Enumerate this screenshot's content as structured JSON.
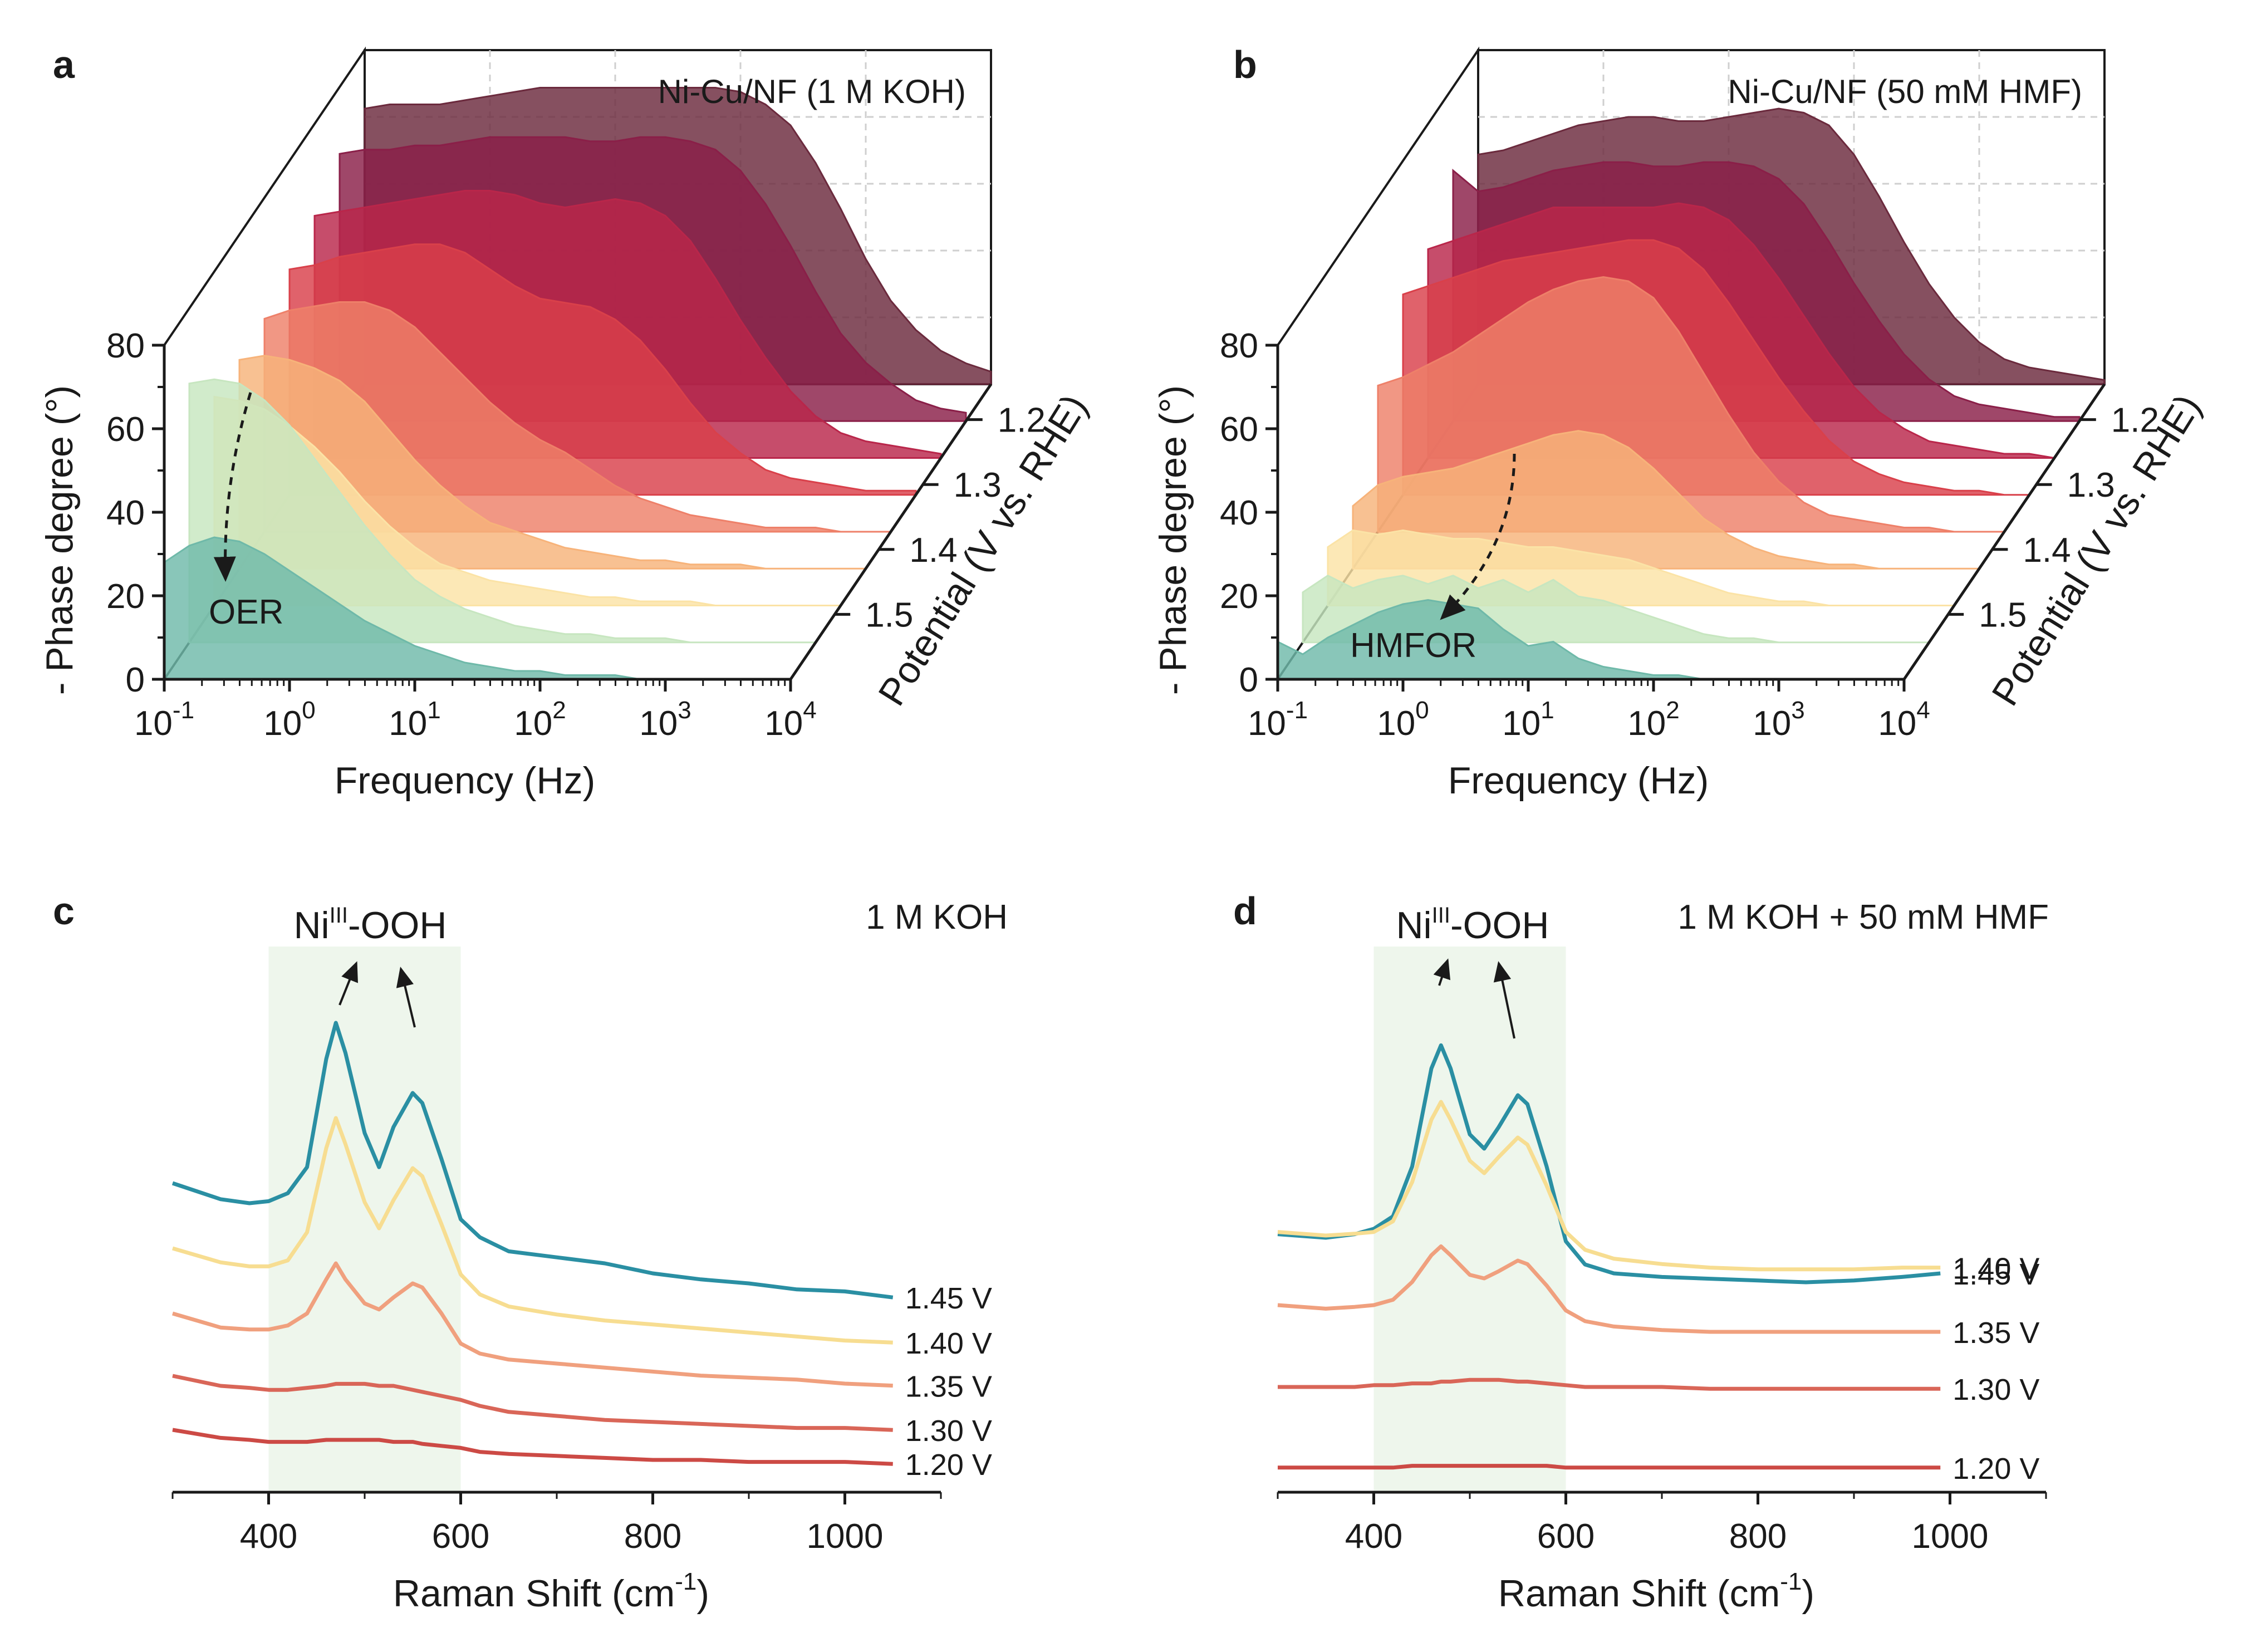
{
  "panels": {
    "a": {
      "label": "a",
      "title": "Ni-Cu/NF  (1 M KOH)",
      "ylabel": "- Phase degree (°)",
      "xlabel": "Frequency (Hz)",
      "zlabel": "Potential (V vs. RHE)",
      "yticks": [
        "0",
        "20",
        "40",
        "60",
        "80"
      ],
      "xticks": [
        {
          "base": "10",
          "exp": "-1"
        },
        {
          "base": "10",
          "exp": "0"
        },
        {
          "base": "10",
          "exp": "1"
        },
        {
          "base": "10",
          "exp": "2"
        },
        {
          "base": "10",
          "exp": "3"
        },
        {
          "base": "10",
          "exp": "4"
        }
      ],
      "zticks": [
        "1.2",
        "1.3",
        "1.4",
        "1.5"
      ],
      "annotation": "OER"
    },
    "b": {
      "label": "b",
      "title": "Ni-Cu/NF  (50 mM HMF)",
      "ylabel": "- Phase degree (°)",
      "xlabel": "Frequency (Hz)",
      "zlabel": "Potential (V vs. RHE)",
      "yticks": [
        "0",
        "20",
        "40",
        "60",
        "80"
      ],
      "xticks": [
        {
          "base": "10",
          "exp": "-1"
        },
        {
          "base": "10",
          "exp": "0"
        },
        {
          "base": "10",
          "exp": "1"
        },
        {
          "base": "10",
          "exp": "2"
        },
        {
          "base": "10",
          "exp": "3"
        },
        {
          "base": "10",
          "exp": "4"
        }
      ],
      "zticks": [
        "1.2",
        "1.3",
        "1.4",
        "1.5"
      ],
      "annotation": "HMFOR"
    },
    "c": {
      "label": "c",
      "title": "1 M KOH",
      "peak_label": {
        "main": "Ni",
        "sup": "III",
        "tail": "-OOH"
      },
      "xlabel": {
        "main": "Raman Shift (cm",
        "sup": "-1",
        "tail": ")"
      },
      "xticks": [
        "400",
        "600",
        "800",
        "1000"
      ],
      "trace_labels": [
        "1.45 V",
        "1.40 V",
        "1.35 V",
        "1.30 V",
        "1.20 V"
      ]
    },
    "d": {
      "label": "d",
      "title": "1 M KOH + 50 mM HMF",
      "peak_label": {
        "main": "Ni",
        "sup": "III",
        "tail": "-OOH"
      },
      "xlabel": {
        "main": "Raman Shift (cm",
        "sup": "-1",
        "tail": ")"
      },
      "xticks": [
        "400",
        "600",
        "800",
        "1000"
      ],
      "trace_labels": [
        "1.45 V",
        "1.40 V",
        "1.35 V",
        "1.30 V",
        "1.20 V"
      ]
    }
  },
  "colors": {
    "bode": [
      "#6b2a3d",
      "#8a1f48",
      "#b9264a",
      "#d9404a",
      "#ee8069",
      "#f7b37a",
      "#fbe3a6",
      "#c7e6c0",
      "#6fb9a9"
    ],
    "raman": [
      "#2a8fa3",
      "#f7dd91",
      "#f0a07e",
      "#d96658",
      "#cc4a45"
    ],
    "highlight": "#eef6ec",
    "grid": "#cfcfcf"
  },
  "chart_data": [
    {
      "panel": "a",
      "type": "area",
      "title": "Ni-Cu/NF  (1 M KOH)",
      "xlabel": "Frequency (Hz)",
      "ylabel": "- Phase degree (°)",
      "zlabel": "Potential (V vs. RHE)",
      "x_scale": "log",
      "xlim": [
        0.1,
        10000
      ],
      "ylim": [
        0,
        80
      ],
      "grid": true,
      "log10_frequency": [
        -1.0,
        -0.8,
        -0.6,
        -0.4,
        -0.2,
        0.0,
        0.2,
        0.4,
        0.6,
        0.8,
        1.0,
        1.2,
        1.4,
        1.6,
        1.8,
        2.0,
        2.2,
        2.4,
        2.6,
        2.8,
        3.0,
        3.2,
        3.4,
        3.6,
        3.8,
        4.0
      ],
      "series": [
        {
          "values": [
            66,
            67,
            67,
            67,
            68,
            69,
            70,
            71,
            71,
            71,
            71,
            71,
            71,
            71,
            71,
            70,
            67,
            62,
            53,
            42,
            30,
            20,
            13,
            8,
            5,
            3
          ]
        },
        {
          "values": [
            64,
            65,
            65,
            66,
            66,
            67,
            68,
            68,
            68,
            68,
            67,
            67,
            68,
            68,
            67,
            65,
            60,
            52,
            42,
            31,
            21,
            14,
            9,
            5,
            3,
            2
          ]
        },
        {
          "values": [
            58,
            59,
            60,
            61,
            62,
            63,
            64,
            64,
            63,
            61,
            60,
            61,
            62,
            61,
            58,
            52,
            43,
            33,
            24,
            16,
            10,
            6,
            4,
            3,
            2,
            1
          ]
        },
        {
          "values": [
            54,
            55,
            57,
            58,
            59,
            60,
            60,
            58,
            54,
            50,
            47,
            46,
            45,
            42,
            37,
            30,
            22,
            15,
            10,
            6,
            4,
            3,
            2,
            1,
            1,
            1
          ]
        },
        {
          "values": [
            51,
            53,
            54,
            55,
            55,
            53,
            49,
            43,
            37,
            31,
            26,
            22,
            19,
            15,
            11,
            8,
            6,
            4,
            3,
            2,
            1,
            1,
            1,
            0,
            0,
            0
          ]
        },
        {
          "values": [
            50,
            51,
            50,
            48,
            45,
            40,
            33,
            26,
            20,
            15,
            11,
            9,
            7,
            5,
            4,
            3,
            2,
            2,
            1,
            1,
            1,
            0,
            0,
            0,
            0,
            0
          ]
        },
        {
          "values": [
            50,
            49,
            47,
            43,
            38,
            32,
            25,
            19,
            14,
            10,
            8,
            6,
            5,
            4,
            3,
            2,
            2,
            1,
            1,
            1,
            0,
            0,
            0,
            0,
            0,
            0
          ]
        },
        {
          "values": [
            62,
            63,
            62,
            58,
            52,
            44,
            36,
            28,
            21,
            15,
            11,
            8,
            6,
            4,
            3,
            2,
            2,
            1,
            1,
            1,
            0,
            0,
            0,
            0,
            0,
            0
          ]
        },
        {
          "values": [
            28,
            32,
            34,
            33,
            30,
            26,
            22,
            18,
            14,
            11,
            8,
            6,
            4,
            3,
            2,
            2,
            1,
            1,
            1,
            0,
            0,
            0,
            0,
            0,
            0,
            0
          ]
        }
      ],
      "annotations": [
        "OER"
      ]
    },
    {
      "panel": "b",
      "type": "area",
      "title": "Ni-Cu/NF  (50 mM HMF)",
      "xlabel": "Frequency (Hz)",
      "ylabel": "- Phase degree (°)",
      "zlabel": "Potential (V vs. RHE)",
      "x_scale": "log",
      "xlim": [
        0.1,
        10000
      ],
      "ylim": [
        0,
        80
      ],
      "grid": true,
      "log10_frequency": [
        -1.0,
        -0.8,
        -0.6,
        -0.4,
        -0.2,
        0.0,
        0.2,
        0.4,
        0.6,
        0.8,
        1.0,
        1.2,
        1.4,
        1.6,
        1.8,
        2.0,
        2.2,
        2.4,
        2.6,
        2.8,
        3.0,
        3.2,
        3.4,
        3.6,
        3.8,
        4.0
      ],
      "series": [
        {
          "values": [
            55,
            56,
            58,
            60,
            62,
            63,
            64,
            64,
            63,
            63,
            64,
            65,
            66,
            65,
            62,
            55,
            45,
            34,
            24,
            16,
            10,
            6,
            4,
            3,
            2,
            1
          ]
        },
        {
          "values": [
            60,
            55,
            56,
            58,
            60,
            61,
            62,
            62,
            61,
            61,
            62,
            62,
            61,
            58,
            52,
            43,
            33,
            24,
            16,
            10,
            6,
            4,
            3,
            2,
            1,
            1
          ]
        },
        {
          "values": [
            50,
            52,
            54,
            56,
            58,
            60,
            60,
            60,
            60,
            60,
            61,
            60,
            57,
            51,
            43,
            34,
            25,
            17,
            11,
            7,
            4,
            3,
            2,
            1,
            1,
            0
          ]
        },
        {
          "values": [
            48,
            50,
            52,
            54,
            56,
            57,
            58,
            59,
            60,
            61,
            61,
            59,
            54,
            46,
            37,
            28,
            20,
            13,
            8,
            5,
            3,
            2,
            1,
            1,
            0,
            0
          ]
        },
        {
          "values": [
            35,
            37,
            40,
            43,
            47,
            51,
            55,
            58,
            60,
            61,
            60,
            56,
            48,
            38,
            28,
            19,
            12,
            7,
            4,
            3,
            2,
            1,
            1,
            0,
            0,
            0
          ]
        },
        {
          "values": [
            15,
            20,
            22,
            23,
            24,
            26,
            28,
            30,
            32,
            33,
            32,
            29,
            24,
            18,
            12,
            8,
            5,
            3,
            2,
            1,
            1,
            0,
            0,
            0,
            0,
            0
          ]
        },
        {
          "values": [
            14,
            18,
            17,
            18,
            17,
            16,
            16,
            15,
            14,
            14,
            13,
            12,
            11,
            9,
            7,
            5,
            3,
            2,
            1,
            1,
            0,
            0,
            0,
            0,
            0,
            0
          ]
        },
        {
          "values": [
            12,
            16,
            13,
            15,
            16,
            14,
            16,
            13,
            15,
            12,
            15,
            11,
            10,
            8,
            6,
            4,
            2,
            1,
            1,
            0,
            0,
            0,
            0,
            0,
            0,
            0
          ]
        },
        {
          "values": [
            9,
            6,
            10,
            13,
            16,
            18,
            19,
            18,
            17,
            12,
            8,
            9,
            5,
            3,
            2,
            1,
            1,
            0,
            0,
            0,
            0,
            0,
            0,
            0,
            0,
            0
          ]
        }
      ],
      "annotations": [
        "HMFOR"
      ]
    },
    {
      "panel": "c",
      "type": "line",
      "title": "1 M KOH",
      "xlabel": "Raman Shift (cm-1)",
      "xlim": [
        300,
        1100
      ],
      "highlight_x_range": [
        400,
        600
      ],
      "grid": false,
      "x": [
        300,
        350,
        380,
        400,
        420,
        440,
        460,
        470,
        480,
        500,
        515,
        530,
        550,
        560,
        580,
        600,
        620,
        650,
        700,
        750,
        800,
        850,
        900,
        950,
        1000,
        1050
      ],
      "series": [
        {
          "name": "1.45 V",
          "values": [
            100,
            92,
            90,
            91,
            95,
            108,
            162,
            180,
            165,
            125,
            108,
            128,
            145,
            140,
            112,
            82,
            73,
            66,
            63,
            60,
            55,
            52,
            50,
            47,
            46,
            43
          ]
        },
        {
          "name": "1.40 V",
          "values": [
            80,
            73,
            71,
            71,
            74,
            88,
            130,
            145,
            132,
            103,
            90,
            104,
            120,
            116,
            92,
            67,
            57,
            51,
            47,
            44,
            42,
            40,
            38,
            36,
            34,
            33
          ]
        },
        {
          "name": "1.35 V",
          "values": [
            60,
            53,
            52,
            52,
            54,
            60,
            77,
            85,
            77,
            65,
            62,
            68,
            75,
            73,
            60,
            45,
            40,
            37,
            35,
            33,
            31,
            29,
            28,
            27,
            25,
            24
          ]
        },
        {
          "name": "1.30 V",
          "values": [
            40,
            35,
            34,
            33,
            33,
            34,
            35,
            36,
            36,
            36,
            35,
            35,
            33,
            32,
            30,
            28,
            25,
            22,
            20,
            18,
            17,
            16,
            15,
            14,
            14,
            13
          ]
        },
        {
          "name": "1.20 V",
          "values": [
            20,
            16,
            15,
            14,
            14,
            14,
            15,
            15,
            15,
            15,
            15,
            14,
            14,
            13,
            12,
            11,
            9,
            8,
            7,
            6,
            5,
            5,
            4,
            4,
            4,
            3
          ]
        }
      ]
    },
    {
      "panel": "d",
      "type": "line",
      "title": "1 M KOH + 50 mM HMF",
      "xlabel": "Raman Shift (cm-1)",
      "xlim": [
        300,
        1100
      ],
      "highlight_x_range": [
        400,
        600
      ],
      "grid": false,
      "x": [
        300,
        350,
        380,
        400,
        420,
        440,
        460,
        470,
        480,
        500,
        515,
        530,
        550,
        560,
        580,
        600,
        620,
        650,
        700,
        750,
        800,
        850,
        900,
        950,
        990
      ],
      "series": [
        {
          "name": "1.45 V",
          "values": [
            112,
            110,
            112,
            115,
            122,
            150,
            205,
            218,
            205,
            168,
            160,
            172,
            190,
            185,
            150,
            108,
            95,
            90,
            88,
            87,
            86,
            85,
            86,
            88,
            90
          ]
        },
        {
          "name": "1.40 V",
          "values": [
            82,
            80,
            81,
            82,
            88,
            110,
            145,
            155,
            145,
            122,
            115,
            124,
            135,
            131,
            108,
            82,
            72,
            67,
            64,
            62,
            61,
            61,
            61,
            62,
            62
          ]
        },
        {
          "name": "1.35 V",
          "values": [
            55,
            53,
            54,
            55,
            58,
            68,
            83,
            88,
            83,
            72,
            70,
            74,
            80,
            78,
            66,
            52,
            46,
            43,
            41,
            40,
            40,
            40,
            40,
            40,
            40
          ]
        },
        {
          "name": "1.30 V",
          "values": [
            20,
            20,
            20,
            21,
            21,
            22,
            22,
            23,
            23,
            24,
            24,
            24,
            23,
            23,
            22,
            21,
            20,
            20,
            20,
            19,
            19,
            19,
            19,
            19,
            19
          ]
        },
        {
          "name": "1.20 V",
          "values": [
            6,
            6,
            6,
            6,
            6,
            7,
            7,
            7,
            7,
            7,
            7,
            7,
            7,
            7,
            7,
            6,
            6,
            6,
            6,
            6,
            6,
            6,
            6,
            6,
            6
          ]
        }
      ]
    }
  ]
}
